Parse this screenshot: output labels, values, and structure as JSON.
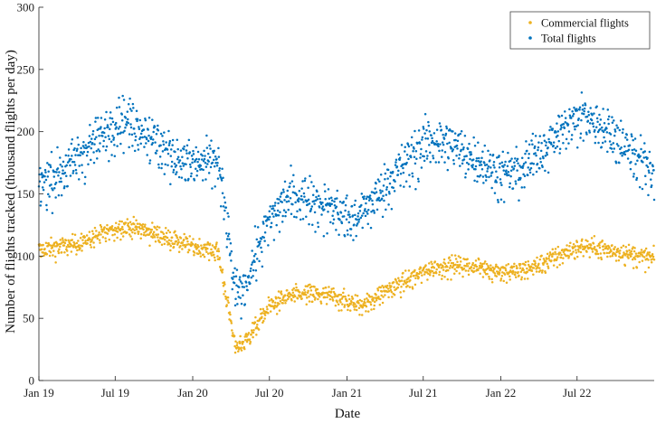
{
  "chart_data": {
    "type": "scatter",
    "xlabel": "Date",
    "ylabel": "Number of flights tracked (thousand flights per day)",
    "x_range": [
      "2019-01-01",
      "2022-12-31"
    ],
    "ylim": [
      0,
      300
    ],
    "x_ticks": [
      {
        "date": "2019-01-01",
        "label": "Jan 19"
      },
      {
        "date": "2019-07-01",
        "label": "Jul 19"
      },
      {
        "date": "2020-01-01",
        "label": "Jan 20"
      },
      {
        "date": "2020-07-01",
        "label": "Jul 20"
      },
      {
        "date": "2021-01-01",
        "label": "Jan 21"
      },
      {
        "date": "2021-07-01",
        "label": "Jul 21"
      },
      {
        "date": "2022-01-01",
        "label": "Jan 22"
      },
      {
        "date": "2022-07-01",
        "label": "Jul 22"
      }
    ],
    "y_ticks": [
      0,
      50,
      100,
      150,
      200,
      250,
      300
    ],
    "grid": false,
    "legend_position": "top-right",
    "series": [
      {
        "name": "Commercial flights",
        "color": "#EDB120",
        "marker": "dot",
        "trend": [
          {
            "date": "2019-01-01",
            "value": 105
          },
          {
            "date": "2019-04-01",
            "value": 110
          },
          {
            "date": "2019-06-01",
            "value": 118
          },
          {
            "date": "2019-07-15",
            "value": 124
          },
          {
            "date": "2019-09-01",
            "value": 122
          },
          {
            "date": "2019-11-01",
            "value": 115
          },
          {
            "date": "2020-01-01",
            "value": 108
          },
          {
            "date": "2020-03-01",
            "value": 104
          },
          {
            "date": "2020-03-25",
            "value": 60
          },
          {
            "date": "2020-04-10",
            "value": 28
          },
          {
            "date": "2020-05-01",
            "value": 30
          },
          {
            "date": "2020-06-01",
            "value": 45
          },
          {
            "date": "2020-07-01",
            "value": 60
          },
          {
            "date": "2020-08-15",
            "value": 68
          },
          {
            "date": "2020-10-01",
            "value": 70
          },
          {
            "date": "2020-12-01",
            "value": 68
          },
          {
            "date": "2021-01-15",
            "value": 62
          },
          {
            "date": "2021-02-15",
            "value": 62
          },
          {
            "date": "2021-04-01",
            "value": 72
          },
          {
            "date": "2021-06-01",
            "value": 82
          },
          {
            "date": "2021-07-15",
            "value": 90
          },
          {
            "date": "2021-09-01",
            "value": 93
          },
          {
            "date": "2021-11-01",
            "value": 92
          },
          {
            "date": "2022-01-01",
            "value": 88
          },
          {
            "date": "2022-02-15",
            "value": 88
          },
          {
            "date": "2022-04-01",
            "value": 93
          },
          {
            "date": "2022-06-01",
            "value": 103
          },
          {
            "date": "2022-07-15",
            "value": 108
          },
          {
            "date": "2022-09-01",
            "value": 106
          },
          {
            "date": "2022-11-01",
            "value": 102
          },
          {
            "date": "2022-12-31",
            "value": 98
          }
        ]
      },
      {
        "name": "Total flights",
        "color": "#0072BD",
        "marker": "dot",
        "trend": [
          {
            "date": "2019-01-01",
            "value": 160
          },
          {
            "date": "2019-03-01",
            "value": 170
          },
          {
            "date": "2019-05-01",
            "value": 190
          },
          {
            "date": "2019-07-15",
            "value": 212
          },
          {
            "date": "2019-09-01",
            "value": 205
          },
          {
            "date": "2019-11-01",
            "value": 185
          },
          {
            "date": "2020-01-01",
            "value": 175
          },
          {
            "date": "2020-03-01",
            "value": 178
          },
          {
            "date": "2020-03-25",
            "value": 120
          },
          {
            "date": "2020-04-10",
            "value": 72
          },
          {
            "date": "2020-05-01",
            "value": 75
          },
          {
            "date": "2020-06-01",
            "value": 105
          },
          {
            "date": "2020-07-01",
            "value": 130
          },
          {
            "date": "2020-08-15",
            "value": 150
          },
          {
            "date": "2020-10-01",
            "value": 148
          },
          {
            "date": "2020-12-01",
            "value": 140
          },
          {
            "date": "2021-01-15",
            "value": 130
          },
          {
            "date": "2021-03-01",
            "value": 145
          },
          {
            "date": "2021-05-01",
            "value": 170
          },
          {
            "date": "2021-07-15",
            "value": 195
          },
          {
            "date": "2021-09-01",
            "value": 192
          },
          {
            "date": "2021-11-01",
            "value": 180
          },
          {
            "date": "2022-01-01",
            "value": 168
          },
          {
            "date": "2022-02-15",
            "value": 170
          },
          {
            "date": "2022-04-01",
            "value": 185
          },
          {
            "date": "2022-06-01",
            "value": 205
          },
          {
            "date": "2022-07-15",
            "value": 215
          },
          {
            "date": "2022-09-01",
            "value": 205
          },
          {
            "date": "2022-11-01",
            "value": 188
          },
          {
            "date": "2022-12-31",
            "value": 168
          }
        ]
      }
    ]
  }
}
